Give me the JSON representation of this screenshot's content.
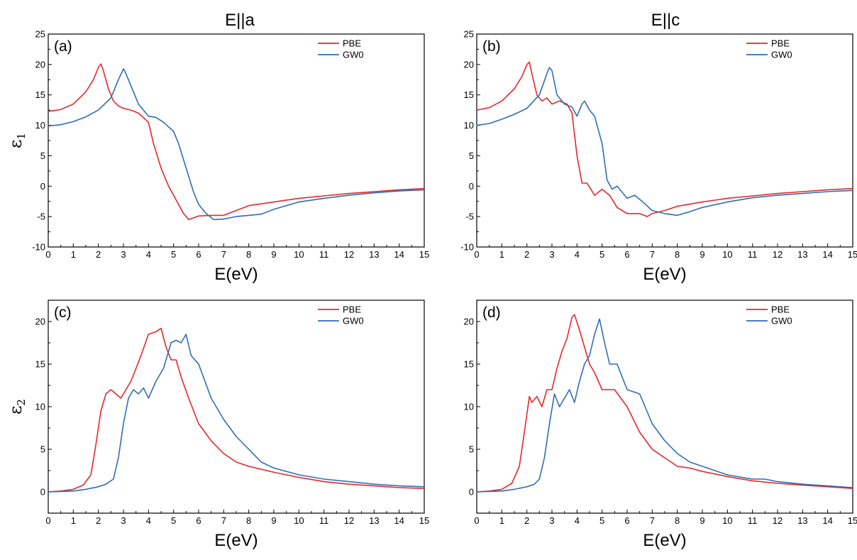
{
  "figure": {
    "column_titles": [
      "E||a",
      "E||c"
    ],
    "colors": {
      "PBE": "#e8262a",
      "GW0": "#2f6db5"
    }
  },
  "chart_data": [
    {
      "type": "line",
      "panel": "(a)",
      "column_title": "E||a",
      "xlabel": "E(eV)",
      "ylabel": "ε",
      "ylabel_sub": "1",
      "xlim": [
        0,
        15
      ],
      "ylim": [
        -10,
        25
      ],
      "xticks": [
        0,
        1,
        2,
        3,
        4,
        5,
        6,
        7,
        8,
        9,
        10,
        11,
        12,
        13,
        14,
        15
      ],
      "yticks": [
        -10,
        -5,
        0,
        5,
        10,
        15,
        20,
        25
      ],
      "legend": "top-right",
      "series": [
        {
          "name": "PBE",
          "color": "#e8262a",
          "x": [
            0,
            0.5,
            1,
            1.5,
            1.8,
            2.0,
            2.1,
            2.2,
            2.4,
            2.6,
            2.8,
            3.0,
            3.3,
            3.6,
            4.0,
            4.2,
            4.5,
            4.8,
            5.0,
            5.2,
            5.4,
            5.6,
            5.8,
            6.0,
            6.5,
            7.0,
            7.5,
            8,
            9,
            10,
            11,
            12,
            13,
            14,
            15
          ],
          "y": [
            12.3,
            12.6,
            13.5,
            15.5,
            17.5,
            19.5,
            20.1,
            19.0,
            16.0,
            14.0,
            13.2,
            12.8,
            12.5,
            12.0,
            10.5,
            7.0,
            3.0,
            0.0,
            -1.5,
            -3.0,
            -4.5,
            -5.5,
            -5.2,
            -4.9,
            -4.8,
            -4.8,
            -4.0,
            -3.2,
            -2.6,
            -2.0,
            -1.6,
            -1.2,
            -0.9,
            -0.6,
            -0.4
          ]
        },
        {
          "name": "GW0",
          "color": "#2f6db5",
          "x": [
            0,
            0.5,
            1,
            1.5,
            2.0,
            2.5,
            2.8,
            3.0,
            3.1,
            3.3,
            3.6,
            4.0,
            4.3,
            4.6,
            5.0,
            5.2,
            5.5,
            5.8,
            6.0,
            6.3,
            6.6,
            7.0,
            7.5,
            8,
            8.5,
            9,
            10,
            11,
            12,
            13,
            14,
            15
          ],
          "y": [
            9.9,
            10.1,
            10.6,
            11.4,
            12.5,
            14.5,
            17.5,
            19.3,
            18.5,
            16.5,
            13.5,
            11.5,
            11.3,
            10.5,
            9.0,
            7.0,
            3.0,
            -1.0,
            -3.0,
            -4.5,
            -5.5,
            -5.4,
            -5.0,
            -4.8,
            -4.6,
            -3.8,
            -2.6,
            -2.0,
            -1.5,
            -1.1,
            -0.8,
            -0.6
          ]
        }
      ]
    },
    {
      "type": "line",
      "panel": "(b)",
      "column_title": "E||c",
      "xlabel": "E(eV)",
      "ylabel": "",
      "ylabel_sub": "",
      "xlim": [
        0,
        15
      ],
      "ylim": [
        -10,
        25
      ],
      "xticks": [
        0,
        1,
        2,
        3,
        4,
        5,
        6,
        7,
        8,
        9,
        10,
        11,
        12,
        13,
        14,
        15
      ],
      "yticks": [
        -10,
        -5,
        0,
        5,
        10,
        15,
        20,
        25
      ],
      "legend": "top-right",
      "series": [
        {
          "name": "PBE",
          "color": "#e8262a",
          "x": [
            0,
            0.5,
            1,
            1.5,
            1.8,
            2.0,
            2.1,
            2.2,
            2.4,
            2.6,
            2.8,
            3.0,
            3.3,
            3.6,
            3.8,
            4.0,
            4.2,
            4.4,
            4.7,
            5.0,
            5.3,
            5.6,
            6.0,
            6.5,
            6.8,
            7.0,
            7.5,
            8,
            9,
            10,
            11,
            12,
            13,
            14,
            15
          ],
          "y": [
            12.5,
            12.9,
            14.0,
            16.0,
            18.0,
            20.0,
            20.4,
            18.5,
            15.0,
            14.0,
            14.5,
            13.5,
            14.0,
            13.5,
            12.0,
            5.0,
            0.5,
            0.5,
            -1.5,
            -0.5,
            -1.5,
            -3.5,
            -4.5,
            -4.5,
            -5.0,
            -4.5,
            -4.0,
            -3.3,
            -2.6,
            -2.0,
            -1.6,
            -1.2,
            -0.9,
            -0.6,
            -0.4
          ]
        },
        {
          "name": "GW0",
          "color": "#2f6db5",
          "x": [
            0,
            0.5,
            1,
            1.5,
            2.0,
            2.5,
            2.8,
            2.9,
            3.0,
            3.2,
            3.5,
            3.8,
            4.0,
            4.2,
            4.3,
            4.5,
            4.7,
            5.0,
            5.2,
            5.4,
            5.6,
            6.0,
            6.3,
            6.6,
            7.0,
            7.5,
            8,
            8.5,
            9,
            10,
            11,
            12,
            13,
            14,
            15
          ],
          "y": [
            10.0,
            10.3,
            11.0,
            11.8,
            12.8,
            15.0,
            18.5,
            19.5,
            19.0,
            15.0,
            13.5,
            13.0,
            11.5,
            13.5,
            14.0,
            12.5,
            11.5,
            7.0,
            1.0,
            -0.5,
            0.0,
            -2.0,
            -1.5,
            -2.5,
            -4.0,
            -4.5,
            -4.8,
            -4.2,
            -3.5,
            -2.6,
            -1.9,
            -1.5,
            -1.2,
            -0.9,
            -0.7
          ]
        }
      ]
    },
    {
      "type": "line",
      "panel": "(c)",
      "column_title": "",
      "xlabel": "E(eV)",
      "ylabel": "ε",
      "ylabel_sub": "2",
      "xlim": [
        0,
        15
      ],
      "ylim": [
        -2.5,
        22.5
      ],
      "xticks": [
        0,
        1,
        2,
        3,
        4,
        5,
        6,
        7,
        8,
        9,
        10,
        11,
        12,
        13,
        14,
        15
      ],
      "yticks": [
        0,
        5,
        10,
        15,
        20
      ],
      "legend": "top-right",
      "series": [
        {
          "name": "PBE",
          "color": "#e8262a",
          "x": [
            0,
            0.5,
            1.0,
            1.4,
            1.7,
            1.9,
            2.1,
            2.3,
            2.5,
            2.7,
            2.9,
            3.1,
            3.3,
            3.5,
            3.7,
            4.0,
            4.3,
            4.5,
            4.7,
            4.9,
            5.1,
            5.3,
            5.6,
            6.0,
            6.5,
            7.0,
            7.5,
            8,
            9,
            10,
            11,
            12,
            13,
            14,
            15
          ],
          "y": [
            0.0,
            0.1,
            0.3,
            0.8,
            2.0,
            5.5,
            9.5,
            11.5,
            12.0,
            11.5,
            11.0,
            12.0,
            13.0,
            14.5,
            16.0,
            18.5,
            18.8,
            19.2,
            17.0,
            15.5,
            15.5,
            13.5,
            11.0,
            8.0,
            6.0,
            4.5,
            3.5,
            3.0,
            2.3,
            1.7,
            1.2,
            0.9,
            0.7,
            0.5,
            0.4
          ]
        },
        {
          "name": "GW0",
          "color": "#2f6db5",
          "x": [
            0,
            0.5,
            1.0,
            1.5,
            2.0,
            2.3,
            2.6,
            2.8,
            3.0,
            3.2,
            3.4,
            3.6,
            3.8,
            4.0,
            4.3,
            4.6,
            4.9,
            5.1,
            5.3,
            5.5,
            5.7,
            6.0,
            6.5,
            7.0,
            7.5,
            8,
            8.5,
            9,
            10,
            11,
            12,
            13,
            14,
            15
          ],
          "y": [
            0.0,
            0.05,
            0.1,
            0.3,
            0.6,
            0.9,
            1.5,
            4.0,
            8.0,
            11.0,
            12.0,
            11.5,
            12.2,
            11.0,
            13.0,
            14.5,
            17.5,
            17.8,
            17.5,
            18.5,
            16.0,
            15.0,
            11.0,
            8.5,
            6.5,
            5.0,
            3.5,
            2.8,
            2.0,
            1.5,
            1.2,
            0.9,
            0.7,
            0.6
          ]
        }
      ]
    },
    {
      "type": "line",
      "panel": "(d)",
      "column_title": "",
      "xlabel": "E(eV)",
      "ylabel": "",
      "ylabel_sub": "",
      "xlim": [
        0,
        15
      ],
      "ylim": [
        -2.5,
        22.5
      ],
      "xticks": [
        0,
        1,
        2,
        3,
        4,
        5,
        6,
        7,
        8,
        9,
        10,
        11,
        12,
        13,
        14,
        15
      ],
      "yticks": [
        0,
        5,
        10,
        15,
        20
      ],
      "legend": "top-right",
      "series": [
        {
          "name": "PBE",
          "color": "#e8262a",
          "x": [
            0,
            0.5,
            1.0,
            1.4,
            1.7,
            1.9,
            2.1,
            2.2,
            2.4,
            2.6,
            2.8,
            3.0,
            3.2,
            3.4,
            3.6,
            3.8,
            3.9,
            4.1,
            4.3,
            4.5,
            4.7,
            5.0,
            5.5,
            6.0,
            6.5,
            7.0,
            7.5,
            8,
            8.5,
            9,
            10,
            11,
            12,
            13,
            14,
            15
          ],
          "y": [
            0.0,
            0.1,
            0.3,
            1.0,
            3.0,
            7.0,
            11.2,
            10.5,
            11.2,
            10.0,
            12.0,
            12.0,
            14.5,
            16.5,
            18.0,
            20.5,
            20.8,
            19.0,
            17.0,
            15.0,
            14.0,
            12.0,
            12.0,
            10.0,
            7.0,
            5.0,
            4.0,
            3.0,
            2.8,
            2.4,
            1.8,
            1.3,
            1.0,
            0.8,
            0.6,
            0.4
          ]
        },
        {
          "name": "GW0",
          "color": "#2f6db5",
          "x": [
            0,
            0.5,
            1.0,
            1.5,
            2.0,
            2.3,
            2.5,
            2.7,
            2.9,
            3.1,
            3.3,
            3.5,
            3.7,
            3.9,
            4.1,
            4.3,
            4.5,
            4.7,
            4.9,
            5.1,
            5.3,
            5.6,
            6.0,
            6.5,
            7.0,
            7.5,
            8,
            8.5,
            9,
            10,
            11,
            11.5,
            12,
            13,
            14,
            15
          ],
          "y": [
            0.0,
            0.05,
            0.1,
            0.3,
            0.6,
            0.9,
            1.5,
            4.0,
            8.0,
            11.5,
            10.0,
            11.0,
            12.0,
            10.5,
            13.0,
            15.0,
            16.0,
            18.5,
            20.3,
            17.5,
            15.0,
            15.0,
            12.0,
            11.5,
            8.0,
            6.0,
            4.5,
            3.5,
            3.0,
            2.0,
            1.5,
            1.5,
            1.2,
            0.9,
            0.7,
            0.5
          ]
        }
      ]
    }
  ]
}
